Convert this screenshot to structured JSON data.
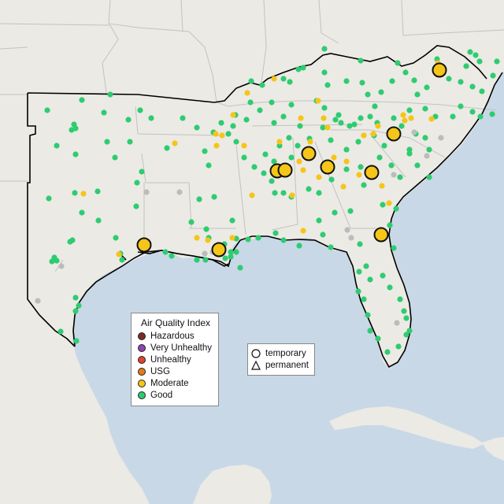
{
  "map": {
    "colors": {
      "water": "#c8d8e6",
      "land": "#eceae5",
      "land_shade": "#dfdcd5",
      "state_border": "#bdbdbd",
      "region_border": "#000000"
    }
  },
  "legend_aqi": {
    "title": "Air Quality Index",
    "items": [
      {
        "label": "Hazardous",
        "color": "#7e2a26"
      },
      {
        "label": "Very Unhealthy",
        "color": "#8e44ad"
      },
      {
        "label": "Unhealthy",
        "color": "#e0432f"
      },
      {
        "label": "USG",
        "color": "#e57a16"
      },
      {
        "label": "Moderate",
        "color": "#f5c518"
      },
      {
        "label": "Good",
        "color": "#2ecc71"
      }
    ]
  },
  "legend_shape": {
    "items": [
      {
        "label": "temporary",
        "icon": "circle-icon"
      },
      {
        "label": "permanent",
        "icon": "triangle-icon"
      }
    ]
  },
  "monitors": {
    "categories": [
      "good",
      "moderate",
      "nodata",
      "moderate-large"
    ],
    "colors": {
      "good": "#2ecc71",
      "moderate": "#f5c518",
      "nodata": "#bcbcbc"
    }
  }
}
